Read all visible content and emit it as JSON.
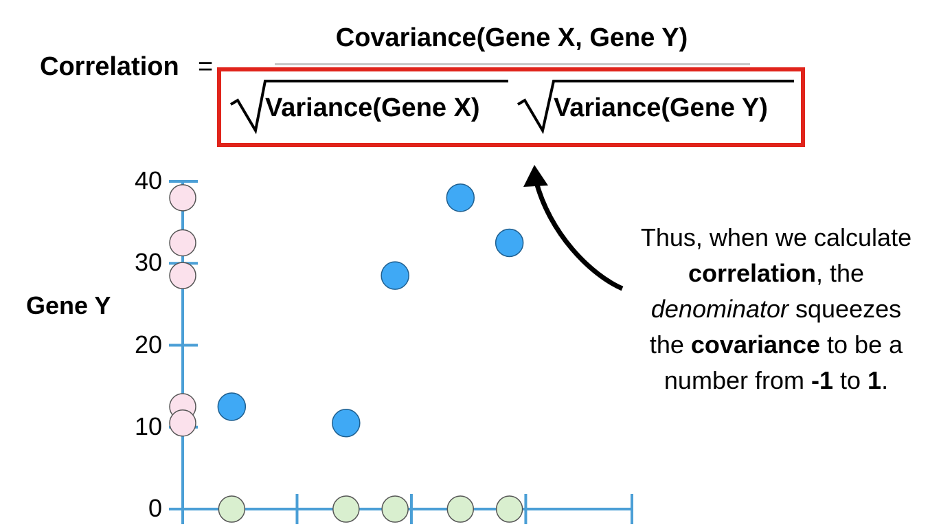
{
  "formula": {
    "lhs": "Correlation",
    "equals": "=",
    "numerator": "Covariance(Gene X, Gene Y)",
    "denominator_x": "Variance(Gene X)",
    "denominator_y": "Variance(Gene Y)"
  },
  "annotation": {
    "line1": "Thus, when we calculate",
    "line2_bold": "correlation",
    "line2_rest": ", the",
    "line3_italic": "denominator",
    "line3_rest": " squeezes",
    "line4_pre": "the ",
    "line4_bold": "covariance",
    "line4_rest": " to be a",
    "line5_pre": "number from ",
    "line5_bold1": "-1",
    "line5_mid": " to ",
    "line5_bold2": "1",
    "line5_end": "."
  },
  "colors": {
    "axis": "#4b9fd6",
    "data_point": "#3fa9f5",
    "y_projection": "#fbe1ec",
    "x_projection": "#d9efcf",
    "highlight_box": "#e0241b",
    "arrow": "#000000"
  },
  "chart_data": {
    "type": "scatter",
    "xlabel": "",
    "ylabel": "Gene Y",
    "ylim": [
      0,
      40
    ],
    "xlim": [
      0,
      5.5
    ],
    "y_ticks": [
      0,
      10,
      20,
      30,
      40
    ],
    "x_ticks": [
      0,
      1.4,
      2.8,
      4.2,
      5.5
    ],
    "grid": false,
    "points": [
      {
        "x": 0.6,
        "y": 12.5
      },
      {
        "x": 2.0,
        "y": 10.5
      },
      {
        "x": 2.6,
        "y": 28.5
      },
      {
        "x": 3.4,
        "y": 38
      },
      {
        "x": 4.0,
        "y": 32.5
      }
    ],
    "y_projections": [
      38,
      32.5,
      28.5,
      12.5,
      10.5
    ],
    "x_projections": [
      0.6,
      2.0,
      2.6,
      3.4,
      4.0
    ]
  }
}
